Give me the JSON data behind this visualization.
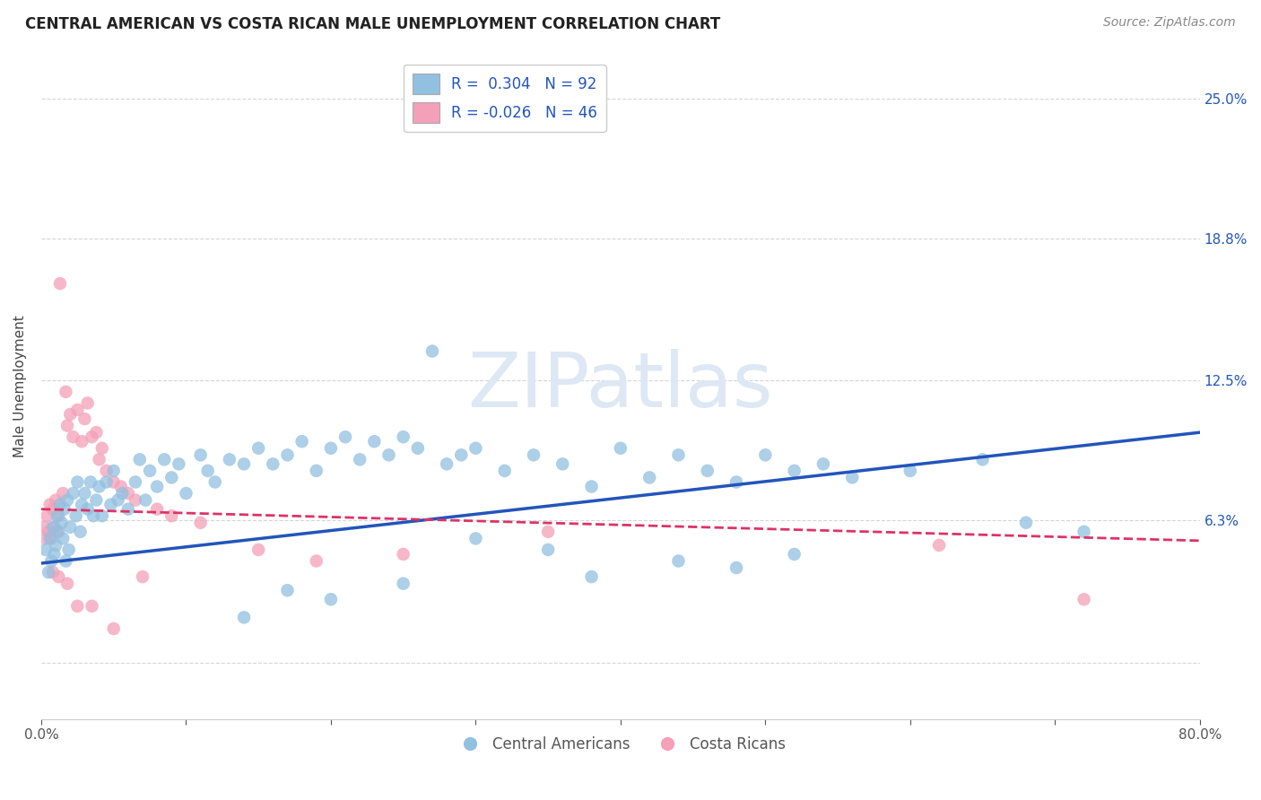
{
  "title": "CENTRAL AMERICAN VS COSTA RICAN MALE UNEMPLOYMENT CORRELATION CHART",
  "source": "Source: ZipAtlas.com",
  "xlabel": "",
  "ylabel": "Male Unemployment",
  "xlim": [
    0.0,
    0.8
  ],
  "ylim": [
    -0.025,
    0.27
  ],
  "xticks": [
    0.0,
    0.1,
    0.2,
    0.3,
    0.4,
    0.5,
    0.6,
    0.7,
    0.8
  ],
  "xticklabels": [
    "0.0%",
    "",
    "",
    "",
    "",
    "",
    "",
    "",
    "80.0%"
  ],
  "ytick_positions": [
    0.0,
    0.063,
    0.125,
    0.188,
    0.25
  ],
  "ytick_labels": [
    "",
    "6.3%",
    "12.5%",
    "18.8%",
    "25.0%"
  ],
  "R_blue": 0.304,
  "N_blue": 92,
  "R_pink": -0.026,
  "N_pink": 46,
  "blue_color": "#92c0e0",
  "pink_color": "#f4a0b8",
  "blue_line_color": "#2255bb",
  "pink_line_color": "#dd3366",
  "watermark": "ZIPatlas",
  "watermark_color": "#dde8f4",
  "background_color": "#ffffff",
  "legend_label_blue": "Central Americans",
  "legend_label_pink": "Costa Ricans",
  "blue_line_x": [
    0.0,
    0.8
  ],
  "blue_line_y": [
    0.044,
    0.102
  ],
  "pink_line_x": [
    0.0,
    0.8
  ],
  "pink_line_y": [
    0.068,
    0.054
  ],
  "blue_scatter_x": [
    0.003,
    0.005,
    0.006,
    0.007,
    0.008,
    0.009,
    0.01,
    0.011,
    0.012,
    0.013,
    0.014,
    0.015,
    0.016,
    0.017,
    0.018,
    0.019,
    0.02,
    0.022,
    0.024,
    0.025,
    0.027,
    0.028,
    0.03,
    0.032,
    0.034,
    0.036,
    0.038,
    0.04,
    0.042,
    0.045,
    0.048,
    0.05,
    0.053,
    0.056,
    0.06,
    0.065,
    0.068,
    0.072,
    0.075,
    0.08,
    0.085,
    0.09,
    0.095,
    0.1,
    0.11,
    0.115,
    0.12,
    0.13,
    0.14,
    0.15,
    0.16,
    0.17,
    0.18,
    0.19,
    0.2,
    0.21,
    0.22,
    0.23,
    0.24,
    0.25,
    0.26,
    0.27,
    0.28,
    0.29,
    0.3,
    0.32,
    0.34,
    0.36,
    0.38,
    0.4,
    0.42,
    0.44,
    0.46,
    0.48,
    0.5,
    0.52,
    0.54,
    0.56,
    0.6,
    0.65,
    0.48,
    0.52,
    0.38,
    0.44,
    0.3,
    0.35,
    0.2,
    0.25,
    0.14,
    0.17,
    0.68,
    0.72
  ],
  "blue_scatter_y": [
    0.05,
    0.04,
    0.055,
    0.045,
    0.06,
    0.048,
    0.052,
    0.065,
    0.058,
    0.07,
    0.062,
    0.055,
    0.068,
    0.045,
    0.072,
    0.05,
    0.06,
    0.075,
    0.065,
    0.08,
    0.058,
    0.07,
    0.075,
    0.068,
    0.08,
    0.065,
    0.072,
    0.078,
    0.065,
    0.08,
    0.07,
    0.085,
    0.072,
    0.075,
    0.068,
    0.08,
    0.09,
    0.072,
    0.085,
    0.078,
    0.09,
    0.082,
    0.088,
    0.075,
    0.092,
    0.085,
    0.08,
    0.09,
    0.088,
    0.095,
    0.088,
    0.092,
    0.098,
    0.085,
    0.095,
    0.1,
    0.09,
    0.098,
    0.092,
    0.1,
    0.095,
    0.138,
    0.088,
    0.092,
    0.095,
    0.085,
    0.092,
    0.088,
    0.078,
    0.095,
    0.082,
    0.092,
    0.085,
    0.08,
    0.092,
    0.085,
    0.088,
    0.082,
    0.085,
    0.09,
    0.042,
    0.048,
    0.038,
    0.045,
    0.055,
    0.05,
    0.028,
    0.035,
    0.02,
    0.032,
    0.062,
    0.058
  ],
  "pink_scatter_x": [
    0.002,
    0.003,
    0.004,
    0.005,
    0.006,
    0.007,
    0.008,
    0.009,
    0.01,
    0.011,
    0.012,
    0.013,
    0.015,
    0.017,
    0.018,
    0.02,
    0.022,
    0.025,
    0.028,
    0.03,
    0.032,
    0.035,
    0.038,
    0.04,
    0.042,
    0.045,
    0.05,
    0.055,
    0.06,
    0.065,
    0.08,
    0.09,
    0.11,
    0.15,
    0.19,
    0.008,
    0.012,
    0.018,
    0.025,
    0.035,
    0.05,
    0.07,
    0.25,
    0.35,
    0.62,
    0.72
  ],
  "pink_scatter_y": [
    0.06,
    0.055,
    0.065,
    0.058,
    0.07,
    0.055,
    0.068,
    0.06,
    0.072,
    0.058,
    0.065,
    0.168,
    0.075,
    0.12,
    0.105,
    0.11,
    0.1,
    0.112,
    0.098,
    0.108,
    0.115,
    0.1,
    0.102,
    0.09,
    0.095,
    0.085,
    0.08,
    0.078,
    0.075,
    0.072,
    0.068,
    0.065,
    0.062,
    0.05,
    0.045,
    0.04,
    0.038,
    0.035,
    0.025,
    0.025,
    0.015,
    0.038,
    0.048,
    0.058,
    0.052,
    0.028
  ]
}
